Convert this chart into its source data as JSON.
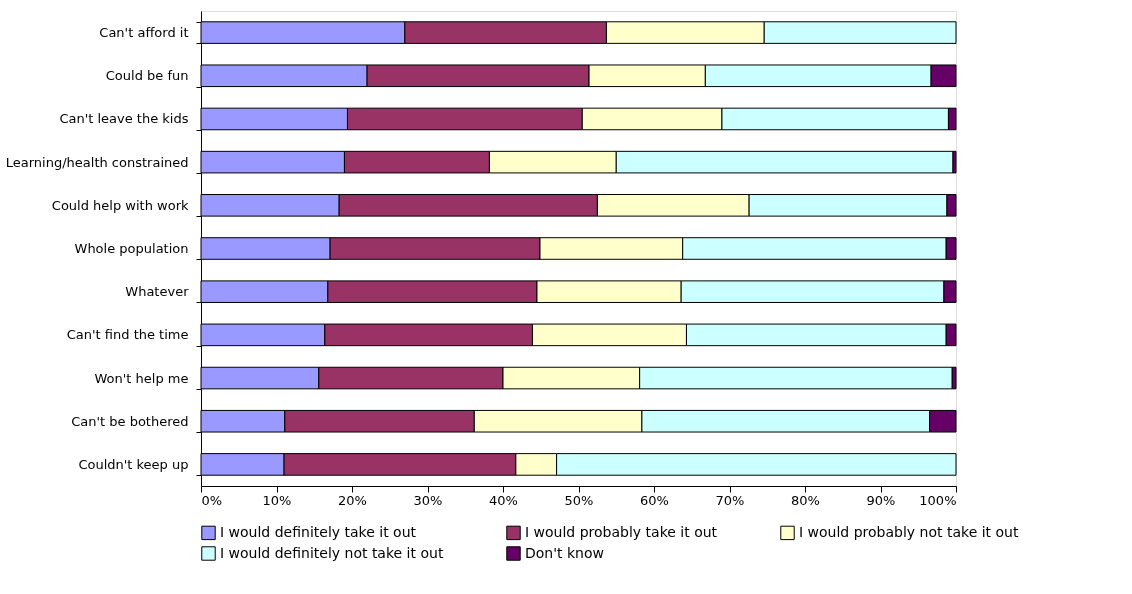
{
  "chart_data": {
    "type": "bar",
    "orientation": "horizontal",
    "stacked": true,
    "categories": [
      "Can't afford it",
      "Could be fun",
      "Can't leave the kids",
      "Learning/health constrained",
      "Could help with work",
      "Whole population",
      "Whatever",
      "Can't find the time",
      "Won't help me",
      "Can't be bothered",
      "Couldn't keep up"
    ],
    "series": [
      {
        "name": "I would definitely take it out",
        "color": "#9999ff",
        "values": [
          27.0,
          22.0,
          19.4,
          19.0,
          18.3,
          17.1,
          16.8,
          16.4,
          15.6,
          11.1,
          11.0
        ]
      },
      {
        "name": "I would probably take it out",
        "color": "#993366",
        "values": [
          26.7,
          29.4,
          31.1,
          19.2,
          34.2,
          27.8,
          27.7,
          27.5,
          24.4,
          25.1,
          30.7
        ]
      },
      {
        "name": "I would probably not take it out",
        "color": "#ffffcc",
        "values": [
          20.9,
          15.4,
          18.5,
          16.8,
          20.1,
          18.9,
          19.1,
          20.4,
          18.1,
          22.2,
          5.4
        ]
      },
      {
        "name": "I would definitely not take it out",
        "color": "#ccffff",
        "values": [
          25.4,
          29.9,
          30.0,
          44.6,
          26.2,
          34.9,
          34.8,
          34.4,
          41.4,
          38.1,
          52.9
        ]
      },
      {
        "name": "Don't know",
        "color": "#660066",
        "values": [
          0,
          3.3,
          1.0,
          0.4,
          1.2,
          1.3,
          1.6,
          1.3,
          0.5,
          3.5,
          0
        ]
      }
    ],
    "xlim": [
      0,
      100
    ],
    "xticks": [
      {
        "value": 0,
        "label": "0%"
      },
      {
        "value": 10,
        "label": "10%"
      },
      {
        "value": 20,
        "label": "20%"
      },
      {
        "value": 30,
        "label": "30%"
      },
      {
        "value": 40,
        "label": "40%"
      },
      {
        "value": 50,
        "label": "50%"
      },
      {
        "value": 60,
        "label": "60%"
      },
      {
        "value": 70,
        "label": "70%"
      },
      {
        "value": 80,
        "label": "80%"
      },
      {
        "value": 90,
        "label": "90%"
      },
      {
        "value": 100,
        "label": "100%"
      }
    ],
    "grid": false,
    "legend": "bottom"
  }
}
